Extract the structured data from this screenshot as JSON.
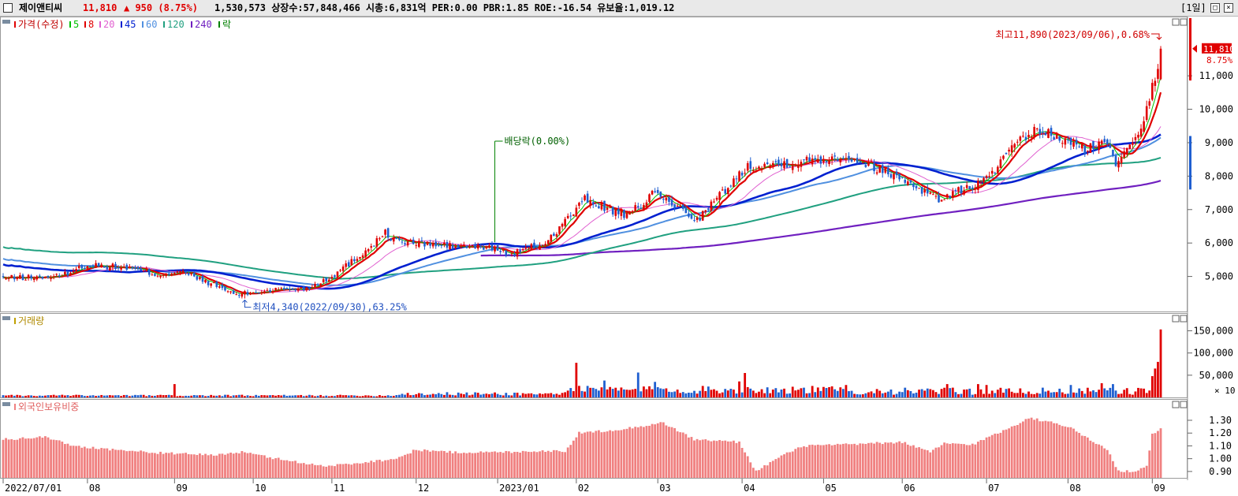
{
  "header": {
    "name": "제이앤티씨",
    "price": "11,810",
    "change": "▲ 950 (8.75%)",
    "stats": "1,530,573  상장수:57,848,466 시총:6,831억 PER:0.00 PBR:1.85 ROE:-16.54 유보율:1,019.12",
    "period": "[1일]",
    "btn_max": "□",
    "btn_close": "×"
  },
  "colors": {
    "up": "#e00000",
    "down": "#1f5fd0",
    "ma5": "#00c000",
    "ma8": "#e00000",
    "ma20": "#e060d0",
    "ma45": "#0020d0",
    "ma60": "#5090e0",
    "ma120": "#20a080",
    "ma240": "#7020c0",
    "foreign": "#f08080"
  },
  "chart_data": [
    {
      "type": "candlestick",
      "legend_prefix": "가격(수정)",
      "legend": [
        {
          "label": "5",
          "color": "#00c000"
        },
        {
          "label": "8",
          "color": "#e00000"
        },
        {
          "label": "20",
          "color": "#e060d0"
        },
        {
          "label": "45",
          "color": "#0020d0"
        },
        {
          "label": "60",
          "color": "#5090e0"
        },
        {
          "label": "120",
          "color": "#20a080"
        },
        {
          "label": "240",
          "color": "#7020c0"
        },
        {
          "label": "락",
          "color": "#008000"
        }
      ],
      "yticks": [
        "5,000",
        "6,000",
        "7,000",
        "8,000",
        "9,000",
        "10,000",
        "11,000"
      ],
      "ylim": [
        4000,
        12300
      ],
      "last_price_label": "11,810",
      "last_change_label": "8.75%",
      "annotations": {
        "high": "최고11,890(2023/09/06),0.68%",
        "low": "최저4,340(2022/09/30),63.25%",
        "dividend": "배당락(0.00%)"
      },
      "anchors": [
        [
          0,
          4950
        ],
        [
          20,
          5000
        ],
        [
          30,
          5350
        ],
        [
          45,
          5250
        ],
        [
          55,
          5050
        ],
        [
          63,
          5150
        ],
        [
          75,
          4750
        ],
        [
          83,
          4450
        ],
        [
          96,
          4600
        ],
        [
          108,
          4650
        ],
        [
          117,
          5000
        ],
        [
          128,
          5700
        ],
        [
          136,
          6300
        ],
        [
          140,
          6050
        ],
        [
          160,
          5900
        ],
        [
          175,
          5850
        ],
        [
          180,
          5650
        ],
        [
          193,
          6000
        ],
        [
          207,
          7300
        ],
        [
          222,
          6800
        ],
        [
          232,
          7500
        ],
        [
          247,
          6700
        ],
        [
          265,
          8300
        ],
        [
          280,
          8400
        ],
        [
          300,
          8600
        ],
        [
          311,
          8250
        ],
        [
          323,
          7800
        ],
        [
          333,
          7300
        ],
        [
          350,
          7900
        ],
        [
          360,
          8900
        ],
        [
          368,
          9400
        ],
        [
          385,
          8800
        ],
        [
          393,
          9000
        ],
        [
          396,
          8400
        ],
        [
          405,
          9500
        ],
        [
          410,
          10900
        ],
        [
          412,
          11810
        ]
      ],
      "dividend_index": 175,
      "low_index": 86,
      "high_index": 412
    },
    {
      "type": "bar",
      "legend": "거래량",
      "yticks": [
        "50,000",
        "100,000",
        "150,000"
      ],
      "ylim": [
        0,
        165000
      ],
      "unit_label": "× 10",
      "last_values": [
        48000,
        65000,
        80000,
        153000
      ]
    },
    {
      "type": "bar",
      "legend": "외국인보유비중",
      "yticks": [
        "0.90",
        "1.00",
        "1.10",
        "1.20",
        "1.30"
      ],
      "ylim": [
        0.85,
        1.38
      ]
    }
  ],
  "xaxis": {
    "labels": [
      {
        "text": "2022/07/01",
        "index": 0
      },
      {
        "text": "08",
        "index": 30
      },
      {
        "text": "09",
        "index": 61
      },
      {
        "text": "10",
        "index": 89
      },
      {
        "text": "11",
        "index": 117
      },
      {
        "text": "12",
        "index": 147
      },
      {
        "text": "2023/01",
        "index": 176
      },
      {
        "text": "02",
        "index": 204
      },
      {
        "text": "03",
        "index": 233
      },
      {
        "text": "04",
        "index": 263
      },
      {
        "text": "05",
        "index": 292
      },
      {
        "text": "06",
        "index": 320
      },
      {
        "text": "07",
        "index": 350
      },
      {
        "text": "08",
        "index": 379
      },
      {
        "text": "09",
        "index": 409
      }
    ]
  }
}
